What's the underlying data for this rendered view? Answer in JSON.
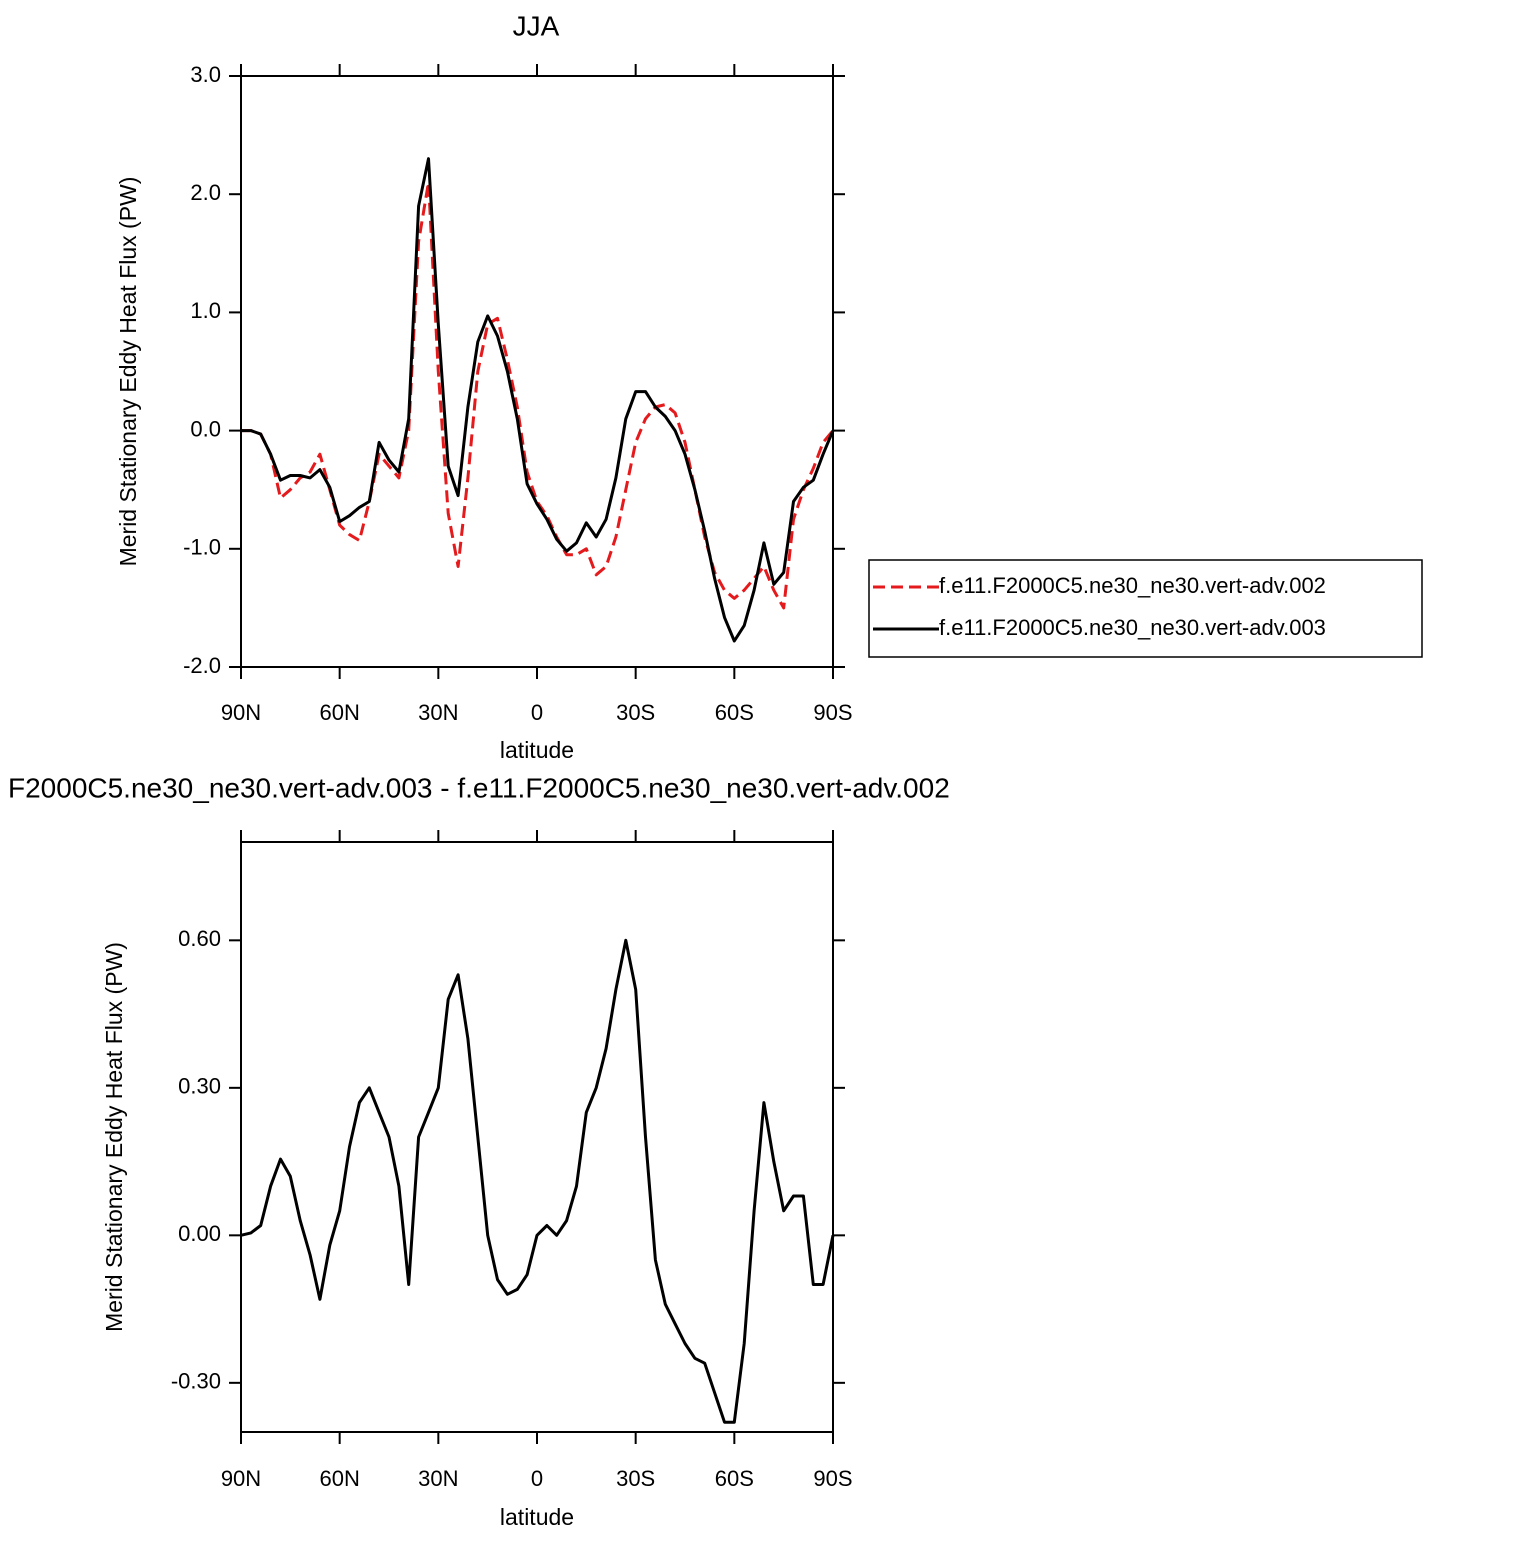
{
  "chart_data": [
    {
      "type": "line",
      "title": "JJA",
      "ylabel": "Merid Stationary Eddy Heat Flux (PW)",
      "xlabel": "latitude",
      "xlim": [
        90,
        -90
      ],
      "xticks": [
        {
          "value": 90,
          "label": "90N"
        },
        {
          "value": 60,
          "label": "60N"
        },
        {
          "value": 30,
          "label": "30N"
        },
        0,
        {
          "value": -30,
          "label": "30S"
        },
        {
          "value": -60,
          "label": "60S"
        },
        {
          "value": -90,
          "label": "90S"
        }
      ],
      "ylim": [
        -2,
        3
      ],
      "yticks": [
        {
          "value": -2,
          "label": "-2.0"
        },
        {
          "value": -1,
          "label": "-1.0"
        },
        {
          "value": 0,
          "label": "0.0"
        },
        {
          "value": 1,
          "label": "1.0"
        },
        {
          "value": 2,
          "label": "2.0"
        },
        {
          "value": 3,
          "label": "3.0"
        }
      ],
      "legend": "right",
      "x": [
        90,
        87,
        84,
        81,
        78,
        75,
        72,
        69,
        66,
        63,
        60,
        57,
        54,
        51,
        48,
        45,
        42,
        39,
        36,
        33,
        30,
        27,
        24,
        21,
        18,
        15,
        12,
        9,
        6,
        3,
        0,
        -3,
        -6,
        -9,
        -12,
        -15,
        -18,
        -21,
        -24,
        -27,
        -30,
        -33,
        -36,
        -39,
        -42,
        -45,
        -48,
        -51,
        -54,
        -57,
        -60,
        -63,
        -66,
        -69,
        -72,
        -75,
        -78,
        -81,
        -84,
        -87,
        -90
      ],
      "series": [
        {
          "name": "f.e11.F2000C5.ne30_ne30.vert-adv.002",
          "color": "#e41a1c",
          "dashed": true,
          "values": [
            0,
            0,
            -0.03,
            -0.2,
            -0.57,
            -0.5,
            -0.4,
            -0.35,
            -0.2,
            -0.5,
            -0.8,
            -0.88,
            -0.93,
            -0.6,
            -0.2,
            -0.3,
            -0.4,
            0.0,
            1.6,
            2.1,
            0.5,
            -0.7,
            -1.15,
            -0.4,
            0.5,
            0.9,
            0.95,
            0.6,
            0.2,
            -0.35,
            -0.6,
            -0.72,
            -0.9,
            -1.05,
            -1.05,
            -1.0,
            -1.22,
            -1.15,
            -0.9,
            -0.5,
            -0.1,
            0.1,
            0.2,
            0.22,
            0.15,
            -0.1,
            -0.5,
            -0.9,
            -1.2,
            -1.35,
            -1.42,
            -1.35,
            -1.25,
            -1.15,
            -1.35,
            -1.5,
            -0.75,
            -0.5,
            -0.32,
            -0.1,
            0
          ]
        },
        {
          "name": "f.e11.F2000C5.ne30_ne30.vert-adv.003",
          "color": "#000000",
          "dashed": false,
          "values": [
            0,
            0,
            -0.03,
            -0.2,
            -0.42,
            -0.38,
            -0.38,
            -0.4,
            -0.33,
            -0.48,
            -0.77,
            -0.72,
            -0.65,
            -0.6,
            -0.1,
            -0.25,
            -0.35,
            0.1,
            1.9,
            2.3,
            0.9,
            -0.3,
            -0.55,
            0.2,
            0.75,
            0.97,
            0.8,
            0.5,
            0.1,
            -0.45,
            -0.62,
            -0.75,
            -0.92,
            -1.02,
            -0.95,
            -0.78,
            -0.9,
            -0.75,
            -0.4,
            0.1,
            0.33,
            0.33,
            0.2,
            0.12,
            0.0,
            -0.2,
            -0.5,
            -0.85,
            -1.25,
            -1.58,
            -1.78,
            -1.65,
            -1.35,
            -0.95,
            -1.3,
            -1.2,
            -0.6,
            -0.48,
            -0.42,
            -0.2,
            0
          ]
        }
      ]
    },
    {
      "type": "line",
      "title": "F2000C5.ne30_ne30.vert-adv.003 - f.e11.F2000C5.ne30_ne30.vert-adv.002",
      "ylabel": "Merid Stationary Eddy Heat Flux (PW)",
      "xlabel": "latitude",
      "xlim": [
        90,
        -90
      ],
      "xticks": [
        {
          "value": 90,
          "label": "90N"
        },
        {
          "value": 60,
          "label": "60N"
        },
        {
          "value": 30,
          "label": "30N"
        },
        0,
        {
          "value": -30,
          "label": "30S"
        },
        {
          "value": -60,
          "label": "60S"
        },
        {
          "value": -90,
          "label": "90S"
        }
      ],
      "ylim": [
        -0.4,
        0.8
      ],
      "yticks": [
        {
          "value": -0.3,
          "label": "-0.30"
        },
        {
          "value": 0,
          "label": "0.00"
        },
        {
          "value": 0.3,
          "label": "0.30"
        },
        {
          "value": 0.6,
          "label": "0.60"
        }
      ],
      "x": [
        90,
        87,
        84,
        81,
        78,
        75,
        72,
        69,
        66,
        63,
        60,
        57,
        54,
        51,
        48,
        45,
        42,
        39,
        36,
        33,
        30,
        27,
        24,
        21,
        18,
        15,
        12,
        9,
        6,
        3,
        0,
        -3,
        -6,
        -9,
        -12,
        -15,
        -18,
        -21,
        -24,
        -27,
        -30,
        -33,
        -36,
        -39,
        -42,
        -45,
        -48,
        -51,
        -54,
        -57,
        -60,
        -63,
        -66,
        -69,
        -72,
        -75,
        -78,
        -81,
        -84,
        -87,
        -90
      ],
      "series": [
        {
          "color": "#000000",
          "dashed": false,
          "values": [
            0,
            0.005,
            0.02,
            0.1,
            0.155,
            0.12,
            0.03,
            -0.04,
            -0.13,
            -0.02,
            0.05,
            0.18,
            0.27,
            0.3,
            0.25,
            0.2,
            0.1,
            -0.1,
            0.2,
            0.25,
            0.3,
            0.48,
            0.53,
            0.4,
            0.2,
            0.0,
            -0.09,
            -0.12,
            -0.11,
            -0.08,
            0.0,
            0.02,
            0.0,
            0.03,
            0.1,
            0.25,
            0.3,
            0.38,
            0.5,
            0.6,
            0.5,
            0.2,
            -0.05,
            -0.14,
            -0.18,
            -0.22,
            -0.25,
            -0.26,
            -0.32,
            -0.38,
            -0.38,
            -0.22,
            0.05,
            0.27,
            0.15,
            0.05,
            0.08,
            0.08,
            -0.1,
            -0.1,
            0
          ]
        }
      ]
    }
  ]
}
